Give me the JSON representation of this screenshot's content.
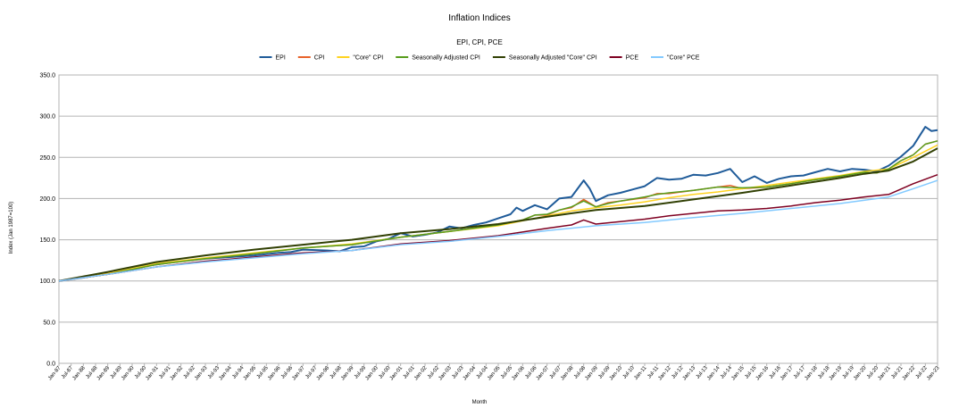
{
  "chart_data": {
    "type": "line",
    "title": "Inflation Indices",
    "subtitle": "EPI, CPI, PCE",
    "xlabel": "Month",
    "ylabel": "Index (Jan 1987=100)",
    "ylim": [
      0,
      350
    ],
    "yticks": [
      "0.0",
      "50.0",
      "100.0",
      "150.0",
      "200.0",
      "250.0",
      "300.0",
      "350.0"
    ],
    "grid": "horizontal",
    "legend": "top",
    "x_start": "Jan-87",
    "x_end": "Jan-23",
    "x_ticks": [
      "Jan-87",
      "Jul-87",
      "Jan-88",
      "Jul-88",
      "Jan-89",
      "Jul-89",
      "Jan-90",
      "Jul-90",
      "Jan-91",
      "Jul-91",
      "Jan-92",
      "Jul-92",
      "Jan-93",
      "Jul-93",
      "Jan-94",
      "Jul-94",
      "Jan-95",
      "Jul-95",
      "Jan-96",
      "Jul-96",
      "Jan-97",
      "Jul-97",
      "Jan-98",
      "Jul-98",
      "Jan-99",
      "Jul-99",
      "Jan-00",
      "Jul-00",
      "Jan-01",
      "Jul-01",
      "Jan-02",
      "Jul-02",
      "Jan-03",
      "Jul-03",
      "Jan-04",
      "Jul-04",
      "Jan-05",
      "Jul-05",
      "Jan-06",
      "Jul-06",
      "Jan-07",
      "Jul-07",
      "Jan-08",
      "Jul-08",
      "Jan-09",
      "Jul-09",
      "Jan-10",
      "Jul-10",
      "Jan-11",
      "Jul-11",
      "Jan-12",
      "Jul-12",
      "Jan-13",
      "Jul-13",
      "Jan-14",
      "Jul-14",
      "Jan-15",
      "Jul-15",
      "Jan-16",
      "Jul-16",
      "Jan-17",
      "Jul-17",
      "Jan-18",
      "Jul-18",
      "Jan-19",
      "Jul-19",
      "Jan-20",
      "Jul-20",
      "Jan-21",
      "Jul-21",
      "Jan-22",
      "Jul-22",
      "Jan-23"
    ],
    "series": [
      {
        "name": "EPI",
        "color": "#1f5b99",
        "width": 2,
        "points": [
          [
            "Jan-87",
            100
          ],
          [
            "Jan-88",
            104
          ],
          [
            "Jan-89",
            109
          ],
          [
            "Jan-90",
            114
          ],
          [
            "Jul-90",
            118
          ],
          [
            "Jan-91",
            120
          ],
          [
            "Jan-92",
            124
          ],
          [
            "Jan-93",
            127
          ],
          [
            "Jan-94",
            129
          ],
          [
            "Jan-95",
            131
          ],
          [
            "Jan-96",
            134
          ],
          [
            "Jul-96",
            135
          ],
          [
            "Jan-97",
            138
          ],
          [
            "Jan-98",
            137
          ],
          [
            "Jul-98",
            136
          ],
          [
            "Jan-99",
            141
          ],
          [
            "Jul-99",
            142
          ],
          [
            "Jan-00",
            148
          ],
          [
            "Jul-00",
            151
          ],
          [
            "Jan-01",
            158
          ],
          [
            "Jul-01",
            154
          ],
          [
            "Jan-02",
            156
          ],
          [
            "Jul-02",
            159
          ],
          [
            "Jan-03",
            166
          ],
          [
            "Jul-03",
            164
          ],
          [
            "Jan-04",
            168
          ],
          [
            "Jul-04",
            171
          ],
          [
            "Jan-05",
            176
          ],
          [
            "Jul-05",
            181
          ],
          [
            "Oct-05",
            189
          ],
          [
            "Jan-06",
            185
          ],
          [
            "Jul-06",
            192
          ],
          [
            "Jan-07",
            187
          ],
          [
            "Jul-07",
            200
          ],
          [
            "Jan-08",
            202
          ],
          [
            "Jul-08",
            222
          ],
          [
            "Oct-08",
            212
          ],
          [
            "Jan-09",
            197
          ],
          [
            "Jul-09",
            204
          ],
          [
            "Jan-10",
            207
          ],
          [
            "Jul-10",
            211
          ],
          [
            "Jan-11",
            215
          ],
          [
            "Jul-11",
            225
          ],
          [
            "Jan-12",
            223
          ],
          [
            "Jul-12",
            224
          ],
          [
            "Jan-13",
            229
          ],
          [
            "Jul-13",
            228
          ],
          [
            "Jan-14",
            231
          ],
          [
            "Jul-14",
            236
          ],
          [
            "Jan-15",
            220
          ],
          [
            "Jul-15",
            227
          ],
          [
            "Jan-16",
            219
          ],
          [
            "Jul-16",
            224
          ],
          [
            "Jan-17",
            227
          ],
          [
            "Jul-17",
            228
          ],
          [
            "Jan-18",
            232
          ],
          [
            "Jul-18",
            236
          ],
          [
            "Jan-19",
            233
          ],
          [
            "Jul-19",
            236
          ],
          [
            "Jan-20",
            235
          ],
          [
            "Jul-20",
            233
          ],
          [
            "Jan-21",
            240
          ],
          [
            "Jul-21",
            251
          ],
          [
            "Jan-22",
            264
          ],
          [
            "Jul-22",
            287
          ],
          [
            "Oct-22",
            282
          ],
          [
            "Jan-23",
            283
          ]
        ]
      },
      {
        "name": "CPI",
        "color": "#e8622a",
        "width": 1.5,
        "points": [
          [
            "Jan-87",
            100
          ],
          [
            "Jan-89",
            108
          ],
          [
            "Jan-91",
            120
          ],
          [
            "Jan-93",
            127
          ],
          [
            "Jan-95",
            133
          ],
          [
            "Jan-97",
            140
          ],
          [
            "Jan-99",
            144
          ],
          [
            "Jan-01",
            153
          ],
          [
            "Jan-03",
            160
          ],
          [
            "Jan-05",
            168
          ],
          [
            "Jul-05",
            171
          ],
          [
            "Jan-06",
            174
          ],
          [
            "Jul-06",
            180
          ],
          [
            "Jan-07",
            180
          ],
          [
            "Jul-07",
            186
          ],
          [
            "Jan-08",
            189
          ],
          [
            "Jul-08",
            199
          ],
          [
            "Jan-09",
            190
          ],
          [
            "Jul-09",
            195
          ],
          [
            "Jan-10",
            197
          ],
          [
            "Jan-11",
            201
          ],
          [
            "Jul-11",
            206
          ],
          [
            "Jan-12",
            206
          ],
          [
            "Jan-13",
            210
          ],
          [
            "Jan-14",
            214
          ],
          [
            "Jul-14",
            216
          ],
          [
            "Jan-15",
            212
          ],
          [
            "Jan-16",
            214
          ],
          [
            "Jan-17",
            218
          ],
          [
            "Jan-18",
            223
          ],
          [
            "Jan-19",
            227
          ],
          [
            "Jan-20",
            232
          ],
          [
            "Jul-20",
            231
          ],
          [
            "Jan-21",
            236
          ],
          [
            "Jul-21",
            246
          ],
          [
            "Jan-22",
            253
          ],
          [
            "Jul-22",
            266
          ],
          [
            "Jan-23",
            270
          ]
        ]
      },
      {
        "name": "\"Core\" CPI",
        "color": "#ffd320",
        "width": 1.5,
        "points": [
          [
            "Jan-87",
            100
          ],
          [
            "Jan-89",
            109
          ],
          [
            "Jan-91",
            121
          ],
          [
            "Jan-93",
            128
          ],
          [
            "Jan-95",
            134
          ],
          [
            "Jan-97",
            140
          ],
          [
            "Jan-99",
            145
          ],
          [
            "Jan-01",
            153
          ],
          [
            "Jan-03",
            160
          ],
          [
            "Jan-05",
            167
          ],
          [
            "Jan-07",
            179
          ],
          [
            "Jan-08",
            185
          ],
          [
            "Jan-09",
            189
          ],
          [
            "Jan-10",
            192
          ],
          [
            "Jan-11",
            196
          ],
          [
            "Jan-12",
            201
          ],
          [
            "Jan-13",
            205
          ],
          [
            "Jan-14",
            208
          ],
          [
            "Jan-15",
            212
          ],
          [
            "Jan-16",
            216
          ],
          [
            "Jan-17",
            220
          ],
          [
            "Jan-18",
            224
          ],
          [
            "Jan-19",
            228
          ],
          [
            "Jan-20",
            233
          ],
          [
            "Jan-21",
            236
          ],
          [
            "Jan-22",
            250
          ],
          [
            "Jan-23",
            265
          ]
        ]
      },
      {
        "name": "Seasonally Adjusted CPI",
        "color": "#579d1c",
        "width": 1.5,
        "points": [
          [
            "Jan-87",
            100
          ],
          [
            "Jan-89",
            108
          ],
          [
            "Jan-91",
            120
          ],
          [
            "Jan-93",
            127
          ],
          [
            "Jan-95",
            133
          ],
          [
            "Jan-97",
            140
          ],
          [
            "Jan-99",
            144
          ],
          [
            "Jan-01",
            153
          ],
          [
            "Jan-03",
            160
          ],
          [
            "Jan-05",
            168
          ],
          [
            "Jan-06",
            174
          ],
          [
            "Jul-06",
            180
          ],
          [
            "Jan-07",
            181
          ],
          [
            "Jul-07",
            186
          ],
          [
            "Jan-08",
            190
          ],
          [
            "Jul-08",
            197
          ],
          [
            "Jan-09",
            190
          ],
          [
            "Jul-09",
            194
          ],
          [
            "Jan-10",
            197
          ],
          [
            "Jan-11",
            202
          ],
          [
            "Jul-11",
            205
          ],
          [
            "Jan-12",
            207
          ],
          [
            "Jan-13",
            210
          ],
          [
            "Jan-14",
            214
          ],
          [
            "Jan-15",
            213
          ],
          [
            "Jan-16",
            214
          ],
          [
            "Jan-17",
            218
          ],
          [
            "Jan-18",
            223
          ],
          [
            "Jan-19",
            227
          ],
          [
            "Jan-20",
            232
          ],
          [
            "Jul-20",
            231
          ],
          [
            "Jan-21",
            236
          ],
          [
            "Jul-21",
            246
          ],
          [
            "Jan-22",
            253
          ],
          [
            "Jul-22",
            266
          ],
          [
            "Jan-23",
            270
          ]
        ]
      },
      {
        "name": "Seasonally Adjusted \"Core\" CPI",
        "color": "#314004",
        "width": 2,
        "points": [
          [
            "Jan-87",
            100
          ],
          [
            "Jan-89",
            111
          ],
          [
            "Jan-91",
            123
          ],
          [
            "Jan-93",
            131
          ],
          [
            "Jan-95",
            138
          ],
          [
            "Jan-97",
            144
          ],
          [
            "Jan-99",
            150
          ],
          [
            "Jan-01",
            158
          ],
          [
            "Jan-03",
            163
          ],
          [
            "Jan-05",
            169
          ],
          [
            "Jan-07",
            178
          ],
          [
            "Jan-09",
            186
          ],
          [
            "Jan-11",
            191
          ],
          [
            "Jan-13",
            199
          ],
          [
            "Jan-15",
            207
          ],
          [
            "Jan-17",
            216
          ],
          [
            "Jan-19",
            225
          ],
          [
            "Jan-20",
            230
          ],
          [
            "Jan-21",
            234
          ],
          [
            "Jan-22",
            245
          ],
          [
            "Jan-23",
            261
          ]
        ]
      },
      {
        "name": "PCE",
        "color": "#7e0021",
        "width": 1.5,
        "points": [
          [
            "Jan-87",
            100
          ],
          [
            "Jan-89",
            108
          ],
          [
            "Jan-91",
            117
          ],
          [
            "Jan-93",
            124
          ],
          [
            "Jan-95",
            129
          ],
          [
            "Jan-97",
            134
          ],
          [
            "Jan-99",
            137
          ],
          [
            "Jan-01",
            145
          ],
          [
            "Jan-03",
            149
          ],
          [
            "Jan-05",
            155
          ],
          [
            "Jan-07",
            164
          ],
          [
            "Jan-08",
            168
          ],
          [
            "Jul-08",
            174
          ],
          [
            "Jan-09",
            169
          ],
          [
            "Jan-10",
            172
          ],
          [
            "Jan-11",
            175
          ],
          [
            "Jan-12",
            179
          ],
          [
            "Jan-13",
            182
          ],
          [
            "Jan-14",
            185
          ],
          [
            "Jan-15",
            186
          ],
          [
            "Jan-16",
            188
          ],
          [
            "Jan-17",
            191
          ],
          [
            "Jan-18",
            195
          ],
          [
            "Jan-19",
            198
          ],
          [
            "Jan-20",
            202
          ],
          [
            "Jan-21",
            205
          ],
          [
            "Jan-22",
            218
          ],
          [
            "Jan-23",
            229
          ]
        ]
      },
      {
        "name": "\"Core\" PCE",
        "color": "#83caff",
        "width": 1.5,
        "points": [
          [
            "Jan-87",
            100
          ],
          [
            "Jan-89",
            108
          ],
          [
            "Jan-91",
            117
          ],
          [
            "Jan-93",
            123
          ],
          [
            "Jan-95",
            128
          ],
          [
            "Jan-97",
            133
          ],
          [
            "Jan-99",
            137
          ],
          [
            "Jan-01",
            144
          ],
          [
            "Jan-03",
            148
          ],
          [
            "Jan-05",
            154
          ],
          [
            "Jan-07",
            161
          ],
          [
            "Jan-09",
            167
          ],
          [
            "Jan-11",
            171
          ],
          [
            "Jan-13",
            177
          ],
          [
            "Jan-15",
            182
          ],
          [
            "Jan-17",
            188
          ],
          [
            "Jan-19",
            194
          ],
          [
            "Jan-21",
            202
          ],
          [
            "Jan-22",
            212
          ],
          [
            "Jan-23",
            222
          ]
        ]
      }
    ]
  }
}
